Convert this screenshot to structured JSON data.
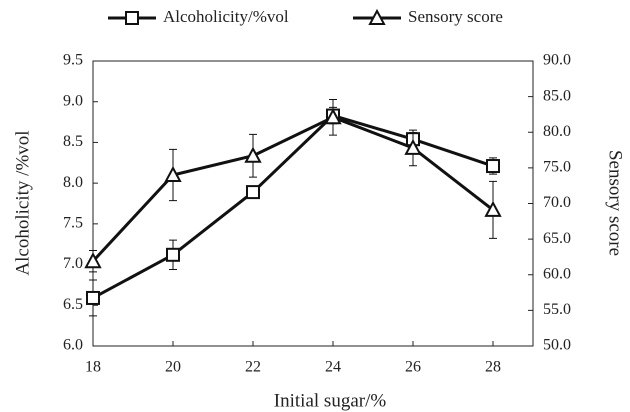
{
  "chart_data": {
    "type": "line",
    "xlabel": "Initial sugar/%",
    "ylabel": "Alcoholicity /%vol",
    "y2label": "Sensory score",
    "x": [
      18,
      20,
      22,
      24,
      26,
      28
    ],
    "xlim": [
      18,
      29
    ],
    "xticks": [
      18,
      20,
      22,
      24,
      26,
      28
    ],
    "ylim": [
      6.0,
      9.5
    ],
    "yticks": [
      {
        "value": 6.0,
        "label": "6.0"
      },
      {
        "value": 6.5,
        "label": "6.5"
      },
      {
        "value": 7.0,
        "label": "7.0"
      },
      {
        "value": 7.5,
        "label": "7.5"
      },
      {
        "value": 8.0,
        "label": "8.0"
      },
      {
        "value": 8.5,
        "label": "8.5"
      },
      {
        "value": 9.0,
        "label": "9.0"
      },
      {
        "value": 9.5,
        "label": "9.5"
      }
    ],
    "y2lim": [
      50,
      90
    ],
    "y2ticks": [
      {
        "value": 50,
        "label": "50.0"
      },
      {
        "value": 55,
        "label": "55.0"
      },
      {
        "value": 60,
        "label": "60.0"
      },
      {
        "value": 65,
        "label": "65.0"
      },
      {
        "value": 70,
        "label": "70.0"
      },
      {
        "value": 75,
        "label": "75.0"
      },
      {
        "value": 80,
        "label": "80.0"
      },
      {
        "value": 85,
        "label": "85.0"
      },
      {
        "value": 90,
        "label": "90.0"
      }
    ],
    "series": [
      {
        "name": "Alcoholicity/%vol",
        "color": "#111111",
        "marker": "square",
        "values": [
          6.59,
          7.12,
          7.89,
          8.83,
          8.54,
          8.21
        ],
        "errors": [
          0.22,
          0.18,
          0.05,
          0.1,
          0.08,
          0.1
        ]
      },
      {
        "name": "Sensory score",
        "color": "#111111",
        "marker": "triangle",
        "axis": "y2",
        "values": [
          61.9,
          74.0,
          76.7,
          82.1,
          77.8,
          69.1
        ],
        "errors": [
          1.5,
          3.6,
          3.0,
          2.5,
          2.5,
          4.0
        ]
      }
    ]
  }
}
